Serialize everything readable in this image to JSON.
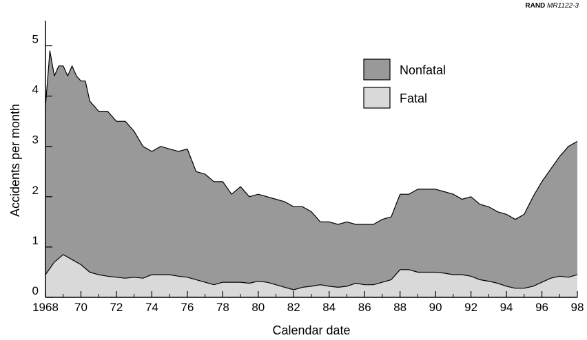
{
  "source": {
    "org": "RAND",
    "doc_id": "MR1122-3"
  },
  "chart_data": {
    "type": "area",
    "xlabel": "Calendar date",
    "ylabel": "Accidents per month",
    "xlim": [
      1968,
      1998
    ],
    "ylim": [
      0,
      5.5
    ],
    "x_ticks": [
      {
        "value": 1968,
        "label": "1968"
      },
      {
        "value": 1970,
        "label": "70"
      },
      {
        "value": 1972,
        "label": "72"
      },
      {
        "value": 1974,
        "label": "74"
      },
      {
        "value": 1976,
        "label": "76"
      },
      {
        "value": 1978,
        "label": "78"
      },
      {
        "value": 1980,
        "label": "80"
      },
      {
        "value": 1982,
        "label": "82"
      },
      {
        "value": 1984,
        "label": "84"
      },
      {
        "value": 1986,
        "label": "86"
      },
      {
        "value": 1988,
        "label": "88"
      },
      {
        "value": 1990,
        "label": "90"
      },
      {
        "value": 1992,
        "label": "92"
      },
      {
        "value": 1994,
        "label": "94"
      },
      {
        "value": 1996,
        "label": "96"
      },
      {
        "value": 1998,
        "label": "98"
      }
    ],
    "y_ticks": [
      0,
      1,
      2,
      3,
      4,
      5
    ],
    "legend_position": "upper-right",
    "series": [
      {
        "name": "Nonfatal",
        "color": "#999999",
        "points": [
          [
            1968.0,
            3.8
          ],
          [
            1968.25,
            4.9
          ],
          [
            1968.5,
            4.4
          ],
          [
            1968.75,
            4.6
          ],
          [
            1969.0,
            4.6
          ],
          [
            1969.25,
            4.4
          ],
          [
            1969.5,
            4.6
          ],
          [
            1969.75,
            4.4
          ],
          [
            1970.0,
            4.3
          ],
          [
            1970.25,
            4.3
          ],
          [
            1970.5,
            3.9
          ],
          [
            1970.75,
            3.8
          ],
          [
            1971.0,
            3.7
          ],
          [
            1971.5,
            3.7
          ],
          [
            1972.0,
            3.5
          ],
          [
            1972.5,
            3.5
          ],
          [
            1973.0,
            3.3
          ],
          [
            1973.5,
            3.0
          ],
          [
            1974.0,
            2.9
          ],
          [
            1974.5,
            3.0
          ],
          [
            1975.0,
            2.95
          ],
          [
            1975.5,
            2.9
          ],
          [
            1976.0,
            2.95
          ],
          [
            1976.5,
            2.5
          ],
          [
            1977.0,
            2.45
          ],
          [
            1977.5,
            2.3
          ],
          [
            1978.0,
            2.3
          ],
          [
            1978.5,
            2.05
          ],
          [
            1979.0,
            2.2
          ],
          [
            1979.5,
            2.0
          ],
          [
            1980.0,
            2.05
          ],
          [
            1980.5,
            2.0
          ],
          [
            1981.0,
            1.95
          ],
          [
            1981.5,
            1.9
          ],
          [
            1982.0,
            1.8
          ],
          [
            1982.5,
            1.8
          ],
          [
            1983.0,
            1.7
          ],
          [
            1983.5,
            1.5
          ],
          [
            1984.0,
            1.5
          ],
          [
            1984.5,
            1.45
          ],
          [
            1985.0,
            1.5
          ],
          [
            1985.5,
            1.45
          ],
          [
            1986.0,
            1.45
          ],
          [
            1986.5,
            1.45
          ],
          [
            1987.0,
            1.55
          ],
          [
            1987.5,
            1.6
          ],
          [
            1988.0,
            2.05
          ],
          [
            1988.5,
            2.05
          ],
          [
            1989.0,
            2.15
          ],
          [
            1989.5,
            2.15
          ],
          [
            1990.0,
            2.15
          ],
          [
            1990.5,
            2.1
          ],
          [
            1991.0,
            2.05
          ],
          [
            1991.5,
            1.95
          ],
          [
            1992.0,
            2.0
          ],
          [
            1992.5,
            1.85
          ],
          [
            1993.0,
            1.8
          ],
          [
            1993.5,
            1.7
          ],
          [
            1994.0,
            1.65
          ],
          [
            1994.5,
            1.55
          ],
          [
            1995.0,
            1.65
          ],
          [
            1995.5,
            2.0
          ],
          [
            1996.0,
            2.3
          ],
          [
            1996.5,
            2.55
          ],
          [
            1997.0,
            2.8
          ],
          [
            1997.5,
            3.0
          ],
          [
            1998.0,
            3.1
          ]
        ]
      },
      {
        "name": "Fatal",
        "color": "#d9d9d9",
        "points": [
          [
            1968.0,
            0.45
          ],
          [
            1968.5,
            0.7
          ],
          [
            1969.0,
            0.85
          ],
          [
            1969.5,
            0.75
          ],
          [
            1970.0,
            0.65
          ],
          [
            1970.5,
            0.5
          ],
          [
            1971.0,
            0.45
          ],
          [
            1971.5,
            0.42
          ],
          [
            1972.0,
            0.4
          ],
          [
            1972.5,
            0.38
          ],
          [
            1973.0,
            0.4
          ],
          [
            1973.5,
            0.38
          ],
          [
            1974.0,
            0.45
          ],
          [
            1974.5,
            0.45
          ],
          [
            1975.0,
            0.45
          ],
          [
            1975.5,
            0.42
          ],
          [
            1976.0,
            0.4
          ],
          [
            1976.5,
            0.35
          ],
          [
            1977.0,
            0.3
          ],
          [
            1977.5,
            0.25
          ],
          [
            1978.0,
            0.3
          ],
          [
            1978.5,
            0.3
          ],
          [
            1979.0,
            0.3
          ],
          [
            1979.5,
            0.28
          ],
          [
            1980.0,
            0.32
          ],
          [
            1980.5,
            0.3
          ],
          [
            1981.0,
            0.25
          ],
          [
            1981.5,
            0.2
          ],
          [
            1982.0,
            0.15
          ],
          [
            1982.5,
            0.2
          ],
          [
            1983.0,
            0.22
          ],
          [
            1983.5,
            0.25
          ],
          [
            1984.0,
            0.22
          ],
          [
            1984.5,
            0.2
          ],
          [
            1985.0,
            0.22
          ],
          [
            1985.5,
            0.28
          ],
          [
            1986.0,
            0.25
          ],
          [
            1986.5,
            0.25
          ],
          [
            1987.0,
            0.3
          ],
          [
            1987.5,
            0.35
          ],
          [
            1988.0,
            0.55
          ],
          [
            1988.5,
            0.55
          ],
          [
            1989.0,
            0.5
          ],
          [
            1989.5,
            0.5
          ],
          [
            1990.0,
            0.5
          ],
          [
            1990.5,
            0.48
          ],
          [
            1991.0,
            0.45
          ],
          [
            1991.5,
            0.45
          ],
          [
            1992.0,
            0.42
          ],
          [
            1992.5,
            0.35
          ],
          [
            1993.0,
            0.32
          ],
          [
            1993.5,
            0.28
          ],
          [
            1994.0,
            0.22
          ],
          [
            1994.5,
            0.18
          ],
          [
            1995.0,
            0.18
          ],
          [
            1995.5,
            0.22
          ],
          [
            1996.0,
            0.3
          ],
          [
            1996.5,
            0.38
          ],
          [
            1997.0,
            0.42
          ],
          [
            1997.5,
            0.4
          ],
          [
            1998.0,
            0.45
          ]
        ]
      }
    ]
  }
}
